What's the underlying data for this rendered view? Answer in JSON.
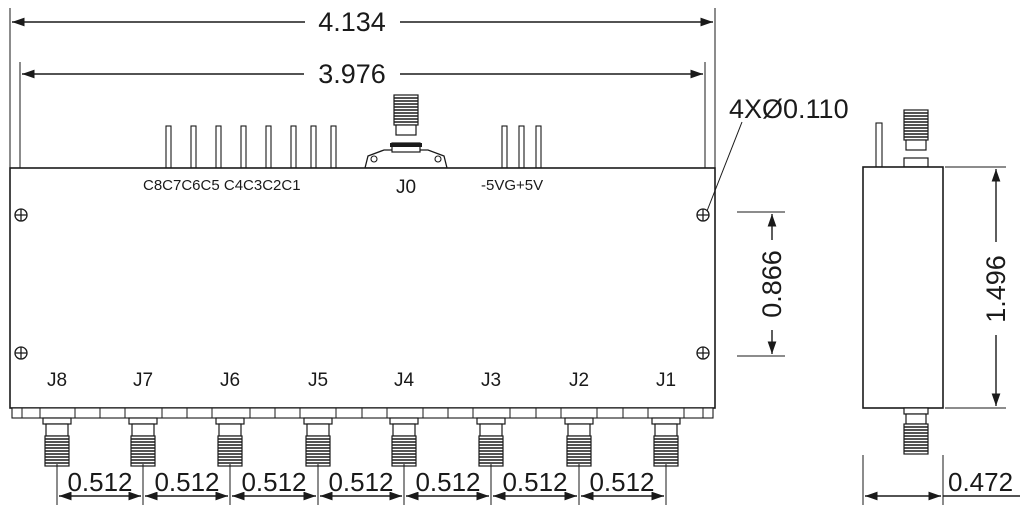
{
  "dimensions": {
    "overall_width": "4.134",
    "mount_spacing": "3.976",
    "hole_callout": "4XØ0.110",
    "hole_vertical_spacing": "0.866",
    "height": "1.496",
    "depth": "0.472",
    "port_pitch": [
      "0.512",
      "0.512",
      "0.512",
      "0.512",
      "0.512",
      "0.512",
      "0.512"
    ]
  },
  "labels": {
    "control_pins": "C8C7C6C5 C4C3C2C1",
    "common_port": "J0",
    "power_pins": "-5VG+5V",
    "ports": [
      "J8",
      "J7",
      "J6",
      "J5",
      "J4",
      "J3",
      "J2",
      "J1"
    ]
  }
}
